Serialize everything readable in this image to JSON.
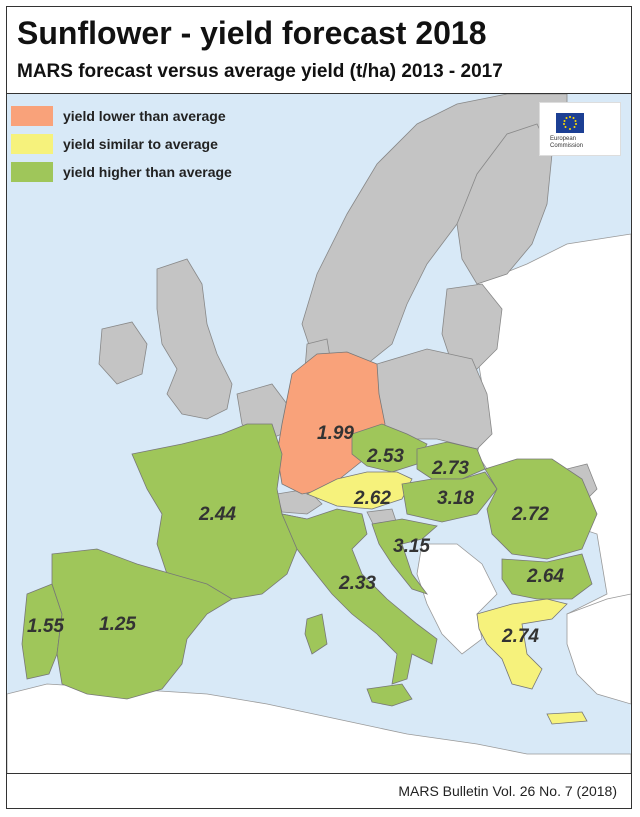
{
  "header": {
    "title": "Sunflower - yield forecast 2018",
    "subtitle": "MARS forecast versus average yield (t/ha) 2013 - 2017"
  },
  "legend": {
    "items": [
      {
        "label": "yield lower than average",
        "color": "#f9a27a"
      },
      {
        "label": "yield similar to average",
        "color": "#f6f27c"
      },
      {
        "label": "yield higher than average",
        "color": "#9fc65a"
      }
    ]
  },
  "logo": {
    "text_line1": "European",
    "text_line2": "Commission"
  },
  "colors": {
    "sea": "#d8e9f7",
    "non_eu_land": "#ffffff",
    "no_data_land": "#c4c4c4",
    "lower": "#f9a27a",
    "similar": "#f6f27c",
    "higher": "#9fc65a"
  },
  "regions": [
    {
      "name": "Germany",
      "value": "1.99",
      "category": "lower"
    },
    {
      "name": "Czechia",
      "value": "2.53",
      "category": "higher"
    },
    {
      "name": "Slovakia",
      "value": "2.73",
      "category": "higher"
    },
    {
      "name": "Austria",
      "value": "2.62",
      "category": "similar"
    },
    {
      "name": "Hungary",
      "value": "3.18",
      "category": "higher"
    },
    {
      "name": "Romania",
      "value": "2.72",
      "category": "higher"
    },
    {
      "name": "Croatia",
      "value": "3.15",
      "category": "higher"
    },
    {
      "name": "Bulgaria",
      "value": "2.64",
      "category": "higher"
    },
    {
      "name": "France",
      "value": "2.44",
      "category": "higher"
    },
    {
      "name": "Italy",
      "value": "2.33",
      "category": "higher"
    },
    {
      "name": "Portugal",
      "value": "1.55",
      "category": "higher"
    },
    {
      "name": "Spain",
      "value": "1.25",
      "category": "higher"
    },
    {
      "name": "Greece",
      "value": "2.74",
      "category": "similar"
    }
  ],
  "footer": {
    "source": "MARS Bulletin Vol. 26 No. 7 (2018)"
  }
}
